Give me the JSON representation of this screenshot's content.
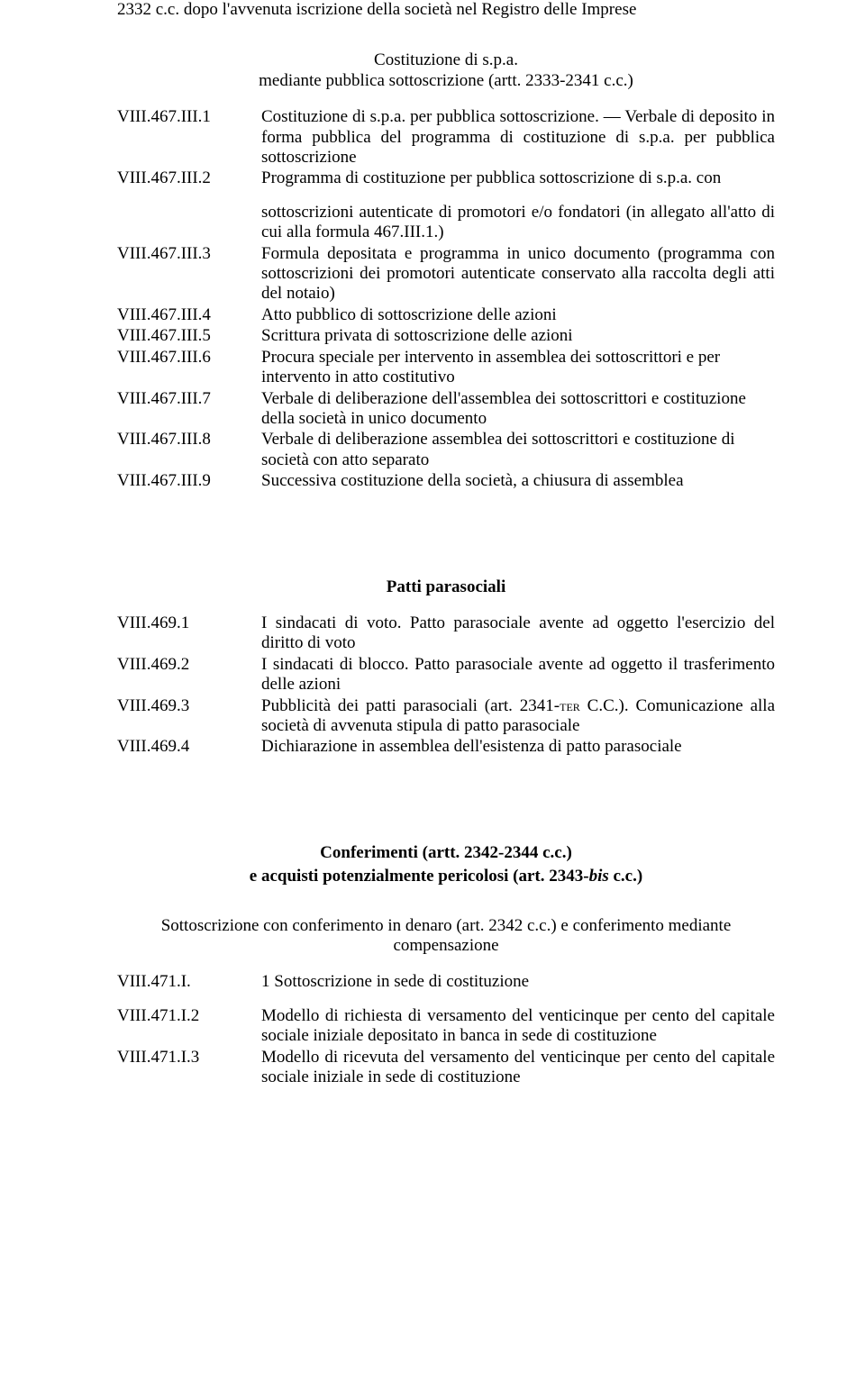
{
  "top": {
    "para": "2332 c.c. dopo l'avvenuta iscrizione della società nel Registro delle Imprese"
  },
  "sec1": {
    "title_a": "Costituzione di s.p.a.",
    "title_b": "mediante pubblica sottoscrizione (artt. 2333-2341 c.c.)"
  },
  "e1": {
    "ref": "VIII.467.III.1",
    "txt": "Costituzione di s.p.a. per pubblica sottoscrizione. — Verbale di deposito in forma pubblica del programma di costituzione di s.p.a. per pubblica sottoscrizione"
  },
  "e2": {
    "ref": "VIII.467.III.2",
    "txt": "Programma di costituzione per pubblica sottoscrizione di s.p.a. con"
  },
  "e3": {
    "ref": "VIII.467.III.3",
    "pre": "sottoscrizioni autenticate di promotori e/o fondatori (in allegato all'atto di cui alla formula 467.III.1.)",
    "txt": "Formula depositata e programma in unico documento (programma con sottoscrizioni dei promotori autenticate conservato alla raccolta degli atti del notaio)"
  },
  "e4": {
    "ref": "VIII.467.III.4",
    "txt": "Atto pubblico di sottoscrizione delle azioni"
  },
  "e5": {
    "ref": "VIII.467.III.5",
    "txt": "Scrittura privata di sottoscrizione delle azioni"
  },
  "e6": {
    "ref": "VIII.467.III.6",
    "txt": "Procura speciale per intervento in assemblea dei sottoscrittori e per intervento in atto costitutivo"
  },
  "e7": {
    "ref": "VIII.467.III.7",
    "txt": "Verbale di deliberazione dell'assemblea dei sottoscrittori e costituzione della società in unico documento"
  },
  "e8": {
    "ref": "VIII.467.III.8",
    "txt": "Verbale di deliberazione assemblea dei sottoscrittori e costituzione di società con atto separato"
  },
  "e9": {
    "ref": "VIII.467.III.9",
    "txt": "Successiva costituzione della società, a chiusura di assemblea"
  },
  "sec2": {
    "title": "Patti parasociali"
  },
  "p1": {
    "ref": "VIII.469.1",
    "txt": "I sindacati di voto. Patto parasociale avente ad oggetto l'esercizio del diritto di voto"
  },
  "p2": {
    "ref": "VIII.469.2",
    "txt": "I sindacati di blocco. Patto parasociale avente ad oggetto il trasferimento delle azioni"
  },
  "p3": {
    "ref": "VIII.469.3",
    "txt_a": "Pubblicità dei patti parasociali (art. 2341-",
    "ter": "ter",
    "txt_b": " C.C.). Comunicazione alla società di avvenuta stipula di patto parasociale"
  },
  "p4": {
    "ref": "VIII.469.4",
    "txt": "Dichiarazione in assemblea dell'esistenza di patto parasociale"
  },
  "sec3": {
    "title_a": "Conferimenti (artt. 2342-2344 c.c.)",
    "title_b_a": "e acquisti potenzialmente pericolosi (art. 2343-",
    "title_b_bis": "bis",
    "title_b_c": " c.c.)"
  },
  "sub3": "Sottoscrizione con conferimento in denaro (art. 2342 c.c.) e conferimento mediante compensazione",
  "c1": {
    "ref": "VIII.471.I.",
    "txt": "1 Sottoscrizione in sede di costituzione"
  },
  "c2": {
    "ref": "VIII.471.I.2",
    "txt": "Modello di richiesta di versamento del venticinque per cento del capitale sociale iniziale depositato in banca in sede di costituzione"
  },
  "c3": {
    "ref": "VIII.471.I.3",
    "txt": "Modello di ricevuta del versamento del venticinque per cento del capitale sociale iniziale in sede di costituzione"
  }
}
